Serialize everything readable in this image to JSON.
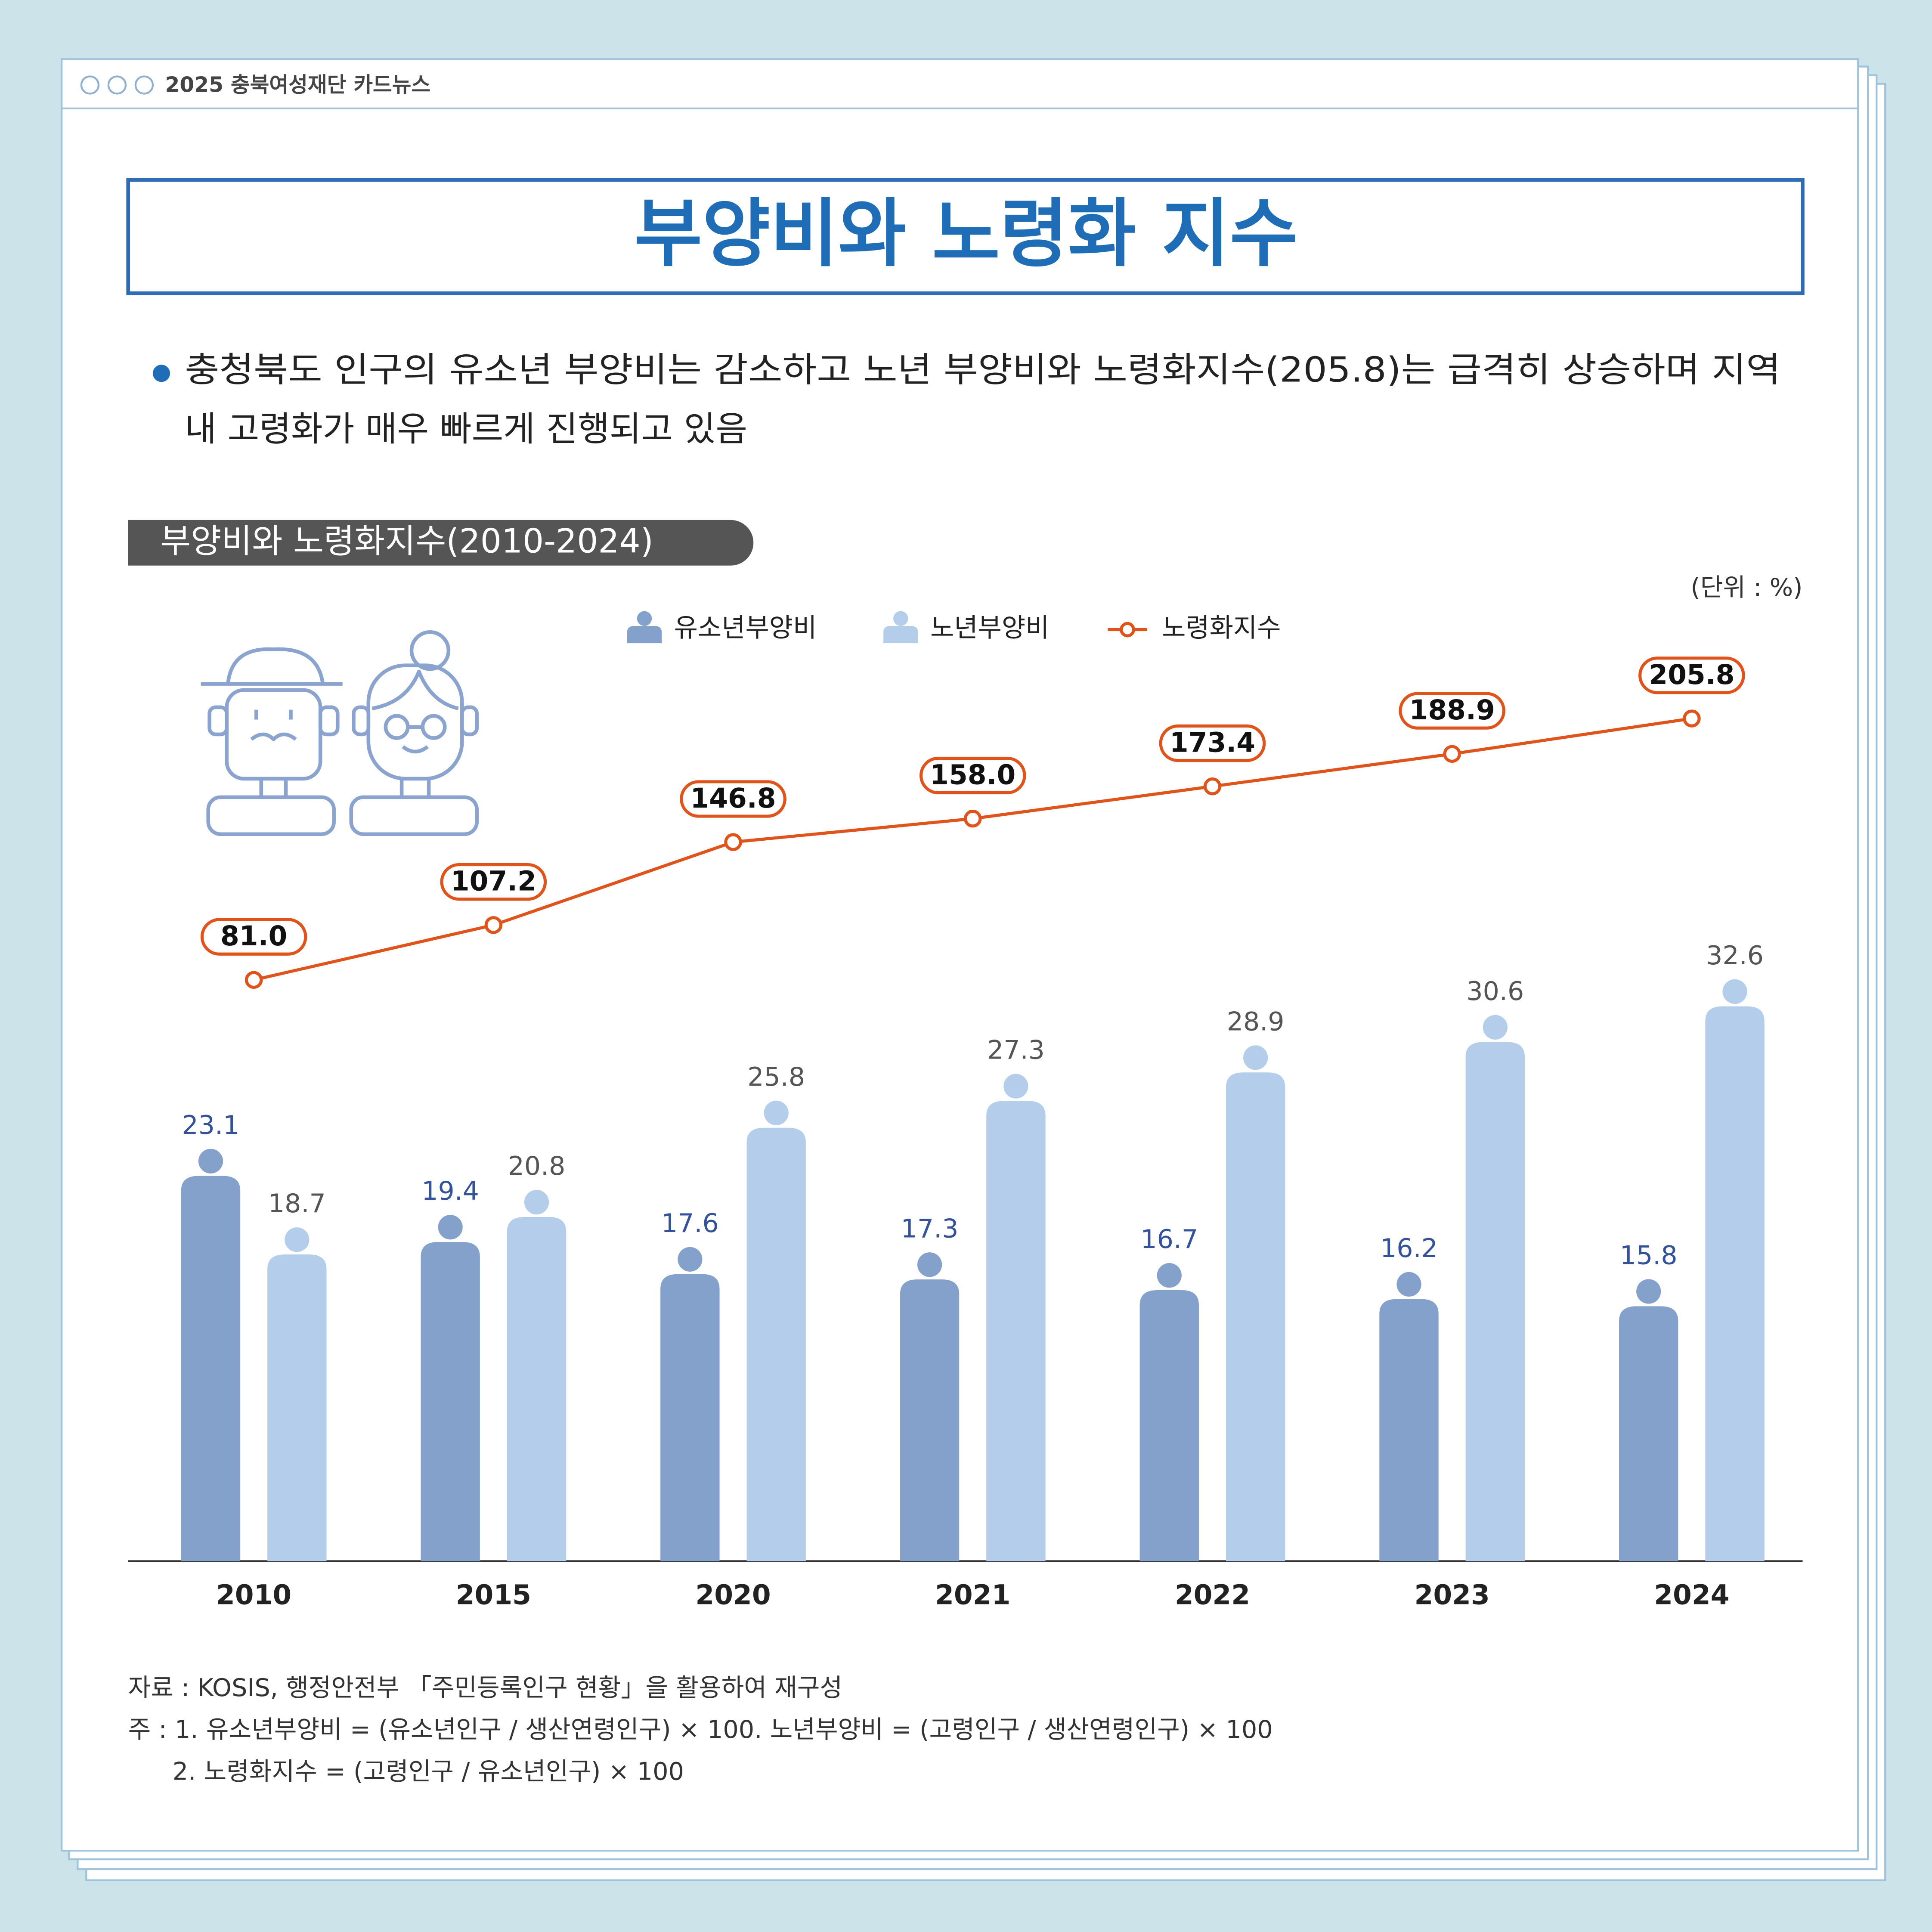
{
  "header": "2025 충북여성재단 카드뉴스",
  "title": "부양비와 노령화 지수",
  "body": [
    "충청북도 인구의 유소년 부양비는 감소하고 노년 부양비와 노령화지수(205.8)는 급격히 상승하며 지역",
    "내 고령화가 매우 빠르게 진행되고 있음"
  ],
  "chart_data": {
    "type": "bar",
    "title": "부양비와 노령화지수(2010-2024)",
    "unit": "(단위 : %)",
    "categories": [
      "2010",
      "2015",
      "2020",
      "2021",
      "2022",
      "2023",
      "2024"
    ],
    "series": [
      {
        "name": "유소년부양비",
        "color": "#84a1cc",
        "label_color": "#34529a",
        "values": [
          23.1,
          19.4,
          17.6,
          17.3,
          16.7,
          16.2,
          15.8
        ]
      },
      {
        "name": "노년부양비",
        "color": "#b3cdeb",
        "label_color": "#555555",
        "values": [
          18.7,
          20.8,
          25.8,
          27.3,
          28.9,
          30.6,
          32.6
        ]
      },
      {
        "name": "노령화지수",
        "type": "line",
        "axis": "y2",
        "color": "#e0531b",
        "values": [
          81.0,
          107.2,
          146.8,
          158.0,
          173.4,
          188.9,
          205.8
        ],
        "value_labels": [
          "81.0",
          "107.2",
          "146.8",
          "158.0",
          "173.4",
          "188.9",
          "205.8"
        ]
      }
    ],
    "ylim": [
      0,
      35
    ],
    "y2lim": [
      0,
      250
    ]
  },
  "notes": [
    "자료 : KOSIS, 행정안전부 「주민등록인구 현황」을 활용하여 재구성",
    "주 : 1. 유소년부양비 = (유소년인구 / 생산연령인구) × 100. 노년부양비 = (고령인구 / 생산연령인구) × 100",
    "2. 노령화지수 = (고령인구 / 유소년인구) × 100"
  ]
}
